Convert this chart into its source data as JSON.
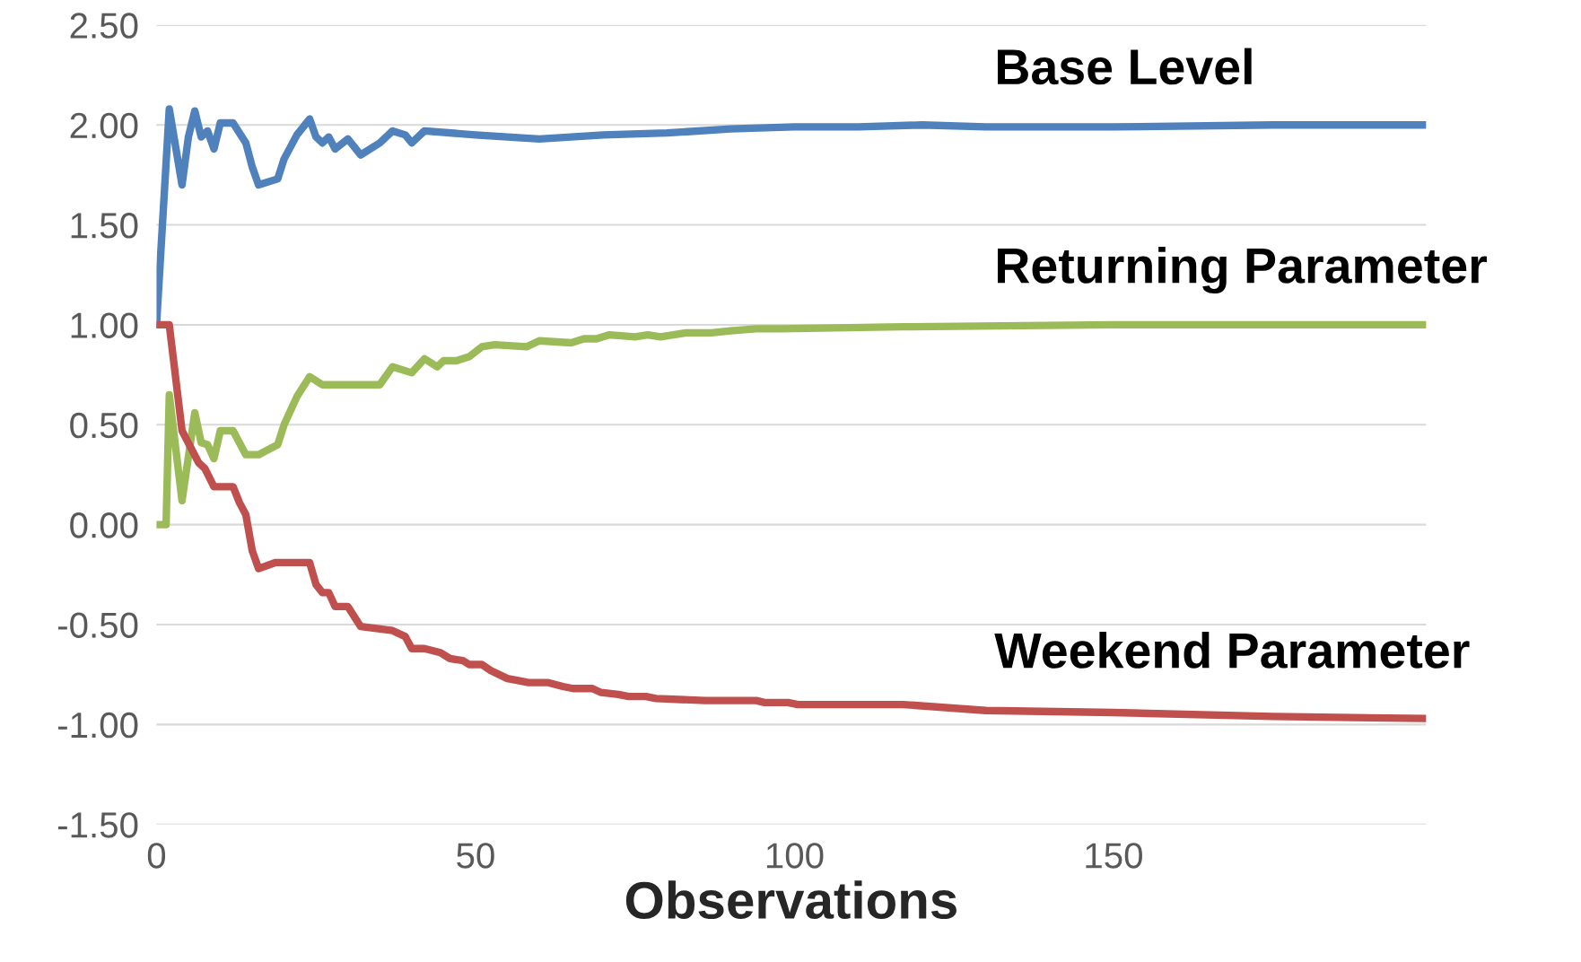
{
  "chart_data": {
    "type": "line",
    "xlabel": "Observations",
    "xlim": [
      0,
      199
    ],
    "xticks": [
      0,
      50,
      100,
      150
    ],
    "ylim": [
      -1.5,
      2.5
    ],
    "yticks": [
      {
        "value": -1.5,
        "label": "-1.50"
      },
      {
        "value": -1,
        "label": "-1.00"
      },
      {
        "value": -0.5,
        "label": "-0.50"
      },
      {
        "value": 0,
        "label": "0.00"
      },
      {
        "value": 0.5,
        "label": "0.50"
      },
      {
        "value": 1,
        "label": "1.00"
      },
      {
        "value": 1.5,
        "label": "1.50"
      },
      {
        "value": 2,
        "label": "2.00"
      },
      {
        "value": 2.5,
        "label": "2.50"
      }
    ],
    "grid": "y",
    "legend": false,
    "marker": "none",
    "line_style": "solid",
    "series": [
      {
        "name": "Base Level",
        "color": "#4f81bd",
        "x": [
          0,
          2,
          4,
          5,
          6,
          7,
          8,
          9,
          10,
          12,
          13,
          14,
          15,
          16,
          19,
          20,
          22,
          24,
          25,
          26,
          27,
          28,
          30,
          32,
          35,
          37,
          39,
          40,
          42,
          50,
          60,
          70,
          80,
          90,
          100,
          110,
          120,
          130,
          150,
          175,
          199
        ],
        "values": [
          1.0,
          2.08,
          1.7,
          1.94,
          2.07,
          1.94,
          1.97,
          1.88,
          2.01,
          2.01,
          1.96,
          1.91,
          1.79,
          1.7,
          1.73,
          1.83,
          1.95,
          2.03,
          1.94,
          1.91,
          1.94,
          1.88,
          1.93,
          1.85,
          1.91,
          1.97,
          1.95,
          1.91,
          1.97,
          1.95,
          1.93,
          1.95,
          1.96,
          1.98,
          1.99,
          1.99,
          2.0,
          1.99,
          1.99,
          2.0,
          2.0
        ]
      },
      {
        "name": "Returning Parameter",
        "color": "#9bbb59",
        "x": [
          0,
          1.5,
          2,
          4,
          6,
          7,
          8,
          9,
          10,
          12,
          14,
          16,
          19,
          20,
          22,
          24,
          26,
          35,
          37,
          40,
          42,
          44,
          45,
          47,
          49,
          51,
          53,
          58,
          60,
          65,
          67,
          69,
          71,
          75,
          77,
          79,
          81,
          83,
          87,
          90,
          94,
          97,
          98,
          117,
          150,
          199
        ],
        "values": [
          0.0,
          0.0,
          0.65,
          0.12,
          0.56,
          0.41,
          0.4,
          0.33,
          0.47,
          0.47,
          0.35,
          0.35,
          0.4,
          0.5,
          0.64,
          0.74,
          0.7,
          0.7,
          0.79,
          0.76,
          0.83,
          0.79,
          0.82,
          0.82,
          0.84,
          0.89,
          0.9,
          0.89,
          0.92,
          0.91,
          0.93,
          0.93,
          0.95,
          0.94,
          0.95,
          0.94,
          0.95,
          0.96,
          0.96,
          0.97,
          0.98,
          0.98,
          0.98,
          0.99,
          1.0,
          1.0
        ]
      },
      {
        "name": "Weekend Parameter",
        "color": "#c0504d",
        "x": [
          0,
          2,
          4,
          6.6,
          7.6,
          9,
          12,
          13,
          14,
          15,
          16,
          18.6,
          24,
          25,
          26,
          27,
          28,
          30,
          32,
          37,
          39,
          40,
          42,
          44.5,
          46,
          48,
          49,
          51,
          52.4,
          55,
          56.7,
          58.3,
          61.3,
          63.7,
          65.3,
          68.3,
          69.7,
          72.4,
          74,
          76.7,
          78.3,
          86,
          94,
          95.3,
          99,
          100.5,
          117,
          130,
          150,
          175,
          199
        ],
        "values": [
          1.0,
          1.0,
          0.47,
          0.31,
          0.28,
          0.19,
          0.19,
          0.11,
          0.05,
          -0.13,
          -0.22,
          -0.19,
          -0.19,
          -0.3,
          -0.34,
          -0.34,
          -0.41,
          -0.41,
          -0.51,
          -0.53,
          -0.56,
          -0.62,
          -0.62,
          -0.64,
          -0.67,
          -0.68,
          -0.7,
          -0.7,
          -0.73,
          -0.77,
          -0.78,
          -0.79,
          -0.79,
          -0.81,
          -0.82,
          -0.82,
          -0.84,
          -0.85,
          -0.86,
          -0.86,
          -0.87,
          -0.88,
          -0.88,
          -0.89,
          -0.89,
          -0.9,
          -0.9,
          -0.93,
          -0.94,
          -0.96,
          -0.97
        ]
      }
    ]
  }
}
